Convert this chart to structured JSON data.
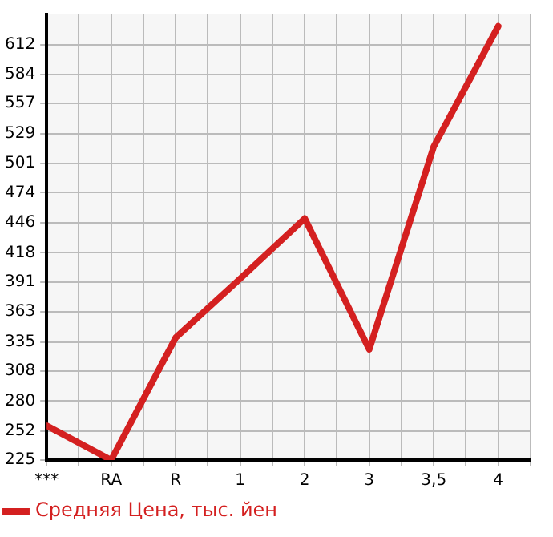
{
  "chart_data": {
    "type": "line",
    "categories": [
      "***",
      "RA",
      "R",
      "1",
      "2",
      "3",
      "3,5",
      "4"
    ],
    "series": [
      {
        "name": "Средняя Цена, тыс. йен",
        "color": "#d42020",
        "values": [
          257,
          225,
          339,
          394,
          450,
          328,
          517,
          629
        ]
      }
    ],
    "ylim": [
      225,
      640
    ],
    "yticks": [
      225,
      252,
      280,
      308,
      335,
      363,
      391,
      418,
      446,
      474,
      501,
      529,
      557,
      584,
      612
    ],
    "grid": true,
    "legend": "bottom left",
    "marker": "none",
    "line_style": "solid"
  }
}
